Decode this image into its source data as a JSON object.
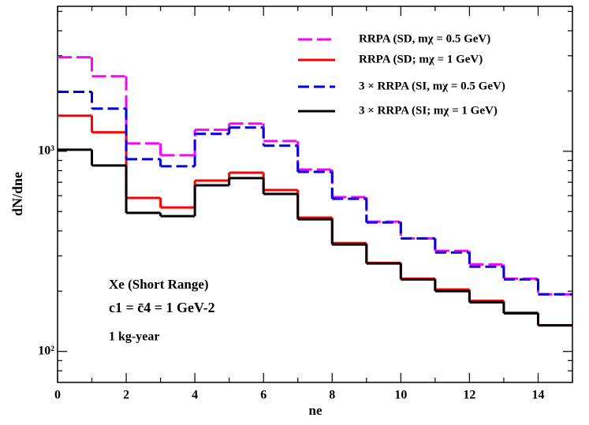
{
  "chart_data": {
    "type": "step-histogram",
    "xlabel": "ne",
    "ylabel": "dN/dne",
    "bins": [
      0,
      1,
      2,
      3,
      4,
      5,
      6,
      7,
      8,
      9,
      10,
      11,
      12,
      13,
      14,
      15
    ],
    "series": [
      {
        "name": "RRPA (SD, mχ = 0.5 GeV)",
        "color": "#ff00ff",
        "dash": "18 6",
        "values": [
          2950,
          2370,
          1095,
          955,
          1280,
          1375,
          1125,
          811,
          590,
          445,
          367,
          318,
          272,
          231,
          193
        ]
      },
      {
        "name": "RRPA (SD; mχ = 1 GeV)",
        "color": "#ff0000",
        "dash": "none",
        "values": [
          1506,
          1244,
          585,
          524,
          714,
          782,
          640,
          466,
          348,
          277,
          231,
          204,
          179,
          156,
          135
        ]
      },
      {
        "name": "3 × RRPA (SI, mχ = 0.5 GeV)",
        "color": "#0000dd",
        "dash": "14 6",
        "values": [
          1980,
          1634,
          913,
          841,
          1222,
          1314,
          1066,
          789,
          579,
          441,
          367,
          312,
          265,
          229,
          193
        ]
      },
      {
        "name": "3 × RRPA (SI; mχ = 1 GeV)",
        "color": "#000000",
        "dash": "none",
        "values": [
          1018,
          849,
          492,
          474,
          676,
          734,
          612,
          457,
          342,
          275,
          229,
          200,
          176,
          155,
          135
        ]
      }
    ],
    "xlim": [
      0,
      15
    ],
    "xticks": [
      0,
      2,
      4,
      6,
      8,
      10,
      12,
      14
    ],
    "xminorticks": [
      1,
      3,
      5,
      7,
      9,
      11,
      13,
      15
    ],
    "ylim": [
      70,
      5300
    ],
    "ylog": true,
    "yticks": [
      {
        "value": 100,
        "label": "10²"
      },
      {
        "value": 1000,
        "label": "10³"
      }
    ],
    "yminorticks": [
      80,
      90,
      200,
      300,
      400,
      500,
      600,
      700,
      800,
      900,
      2000,
      3000,
      4000,
      5000
    ],
    "annotations": [
      "Xe (Short Range)",
      "c1 = c̄4 = 1 GeV-2",
      "1 kg-year"
    ],
    "legend": "upper right"
  }
}
